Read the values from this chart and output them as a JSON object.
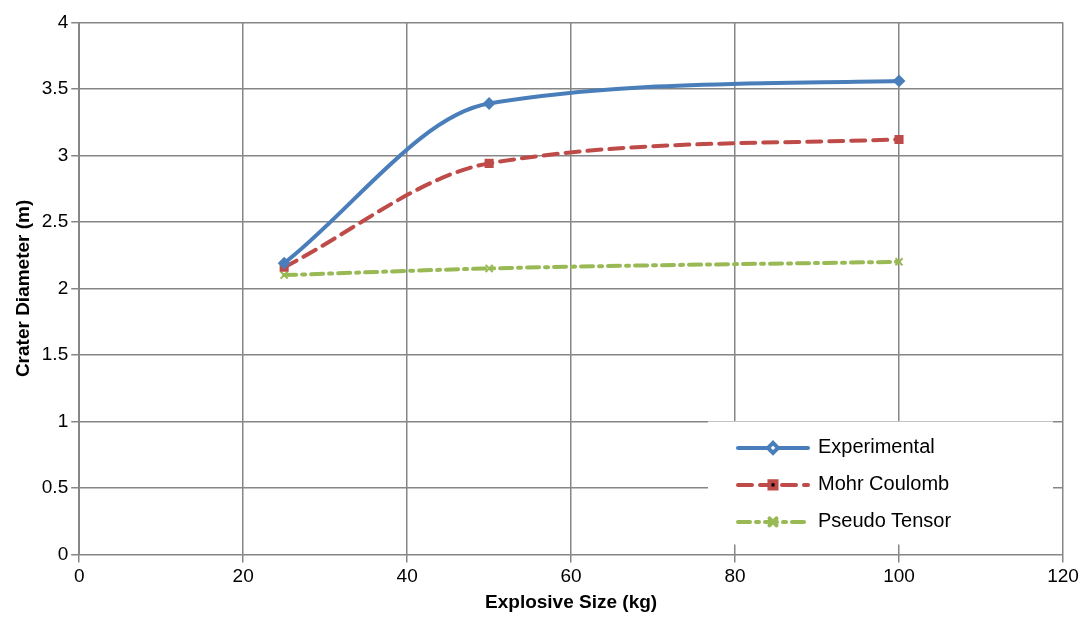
{
  "chart_data": {
    "type": "line",
    "xlabel": "Explosive Size (kg)",
    "ylabel": "Crater Diameter (m)",
    "x": [
      25,
      50,
      100
    ],
    "series": [
      {
        "name": "Experimental",
        "color": "#4a7ebb",
        "values": [
          2.19,
          3.39,
          3.56
        ],
        "marker": "diamond",
        "line_style": "solid"
      },
      {
        "name": "Mohr Coulomb",
        "color": "#be4b48",
        "values": [
          2.16,
          2.94,
          3.12
        ],
        "marker": "square",
        "line_style": "dashed"
      },
      {
        "name": "Pseudo Tensor",
        "color": "#98b954",
        "values": [
          2.1,
          2.15,
          2.2
        ],
        "marker": "cross",
        "line_style": "dotted"
      }
    ],
    "xlim": [
      0,
      120
    ],
    "xticks": [
      0,
      20,
      40,
      60,
      80,
      100,
      120
    ],
    "ylim": [
      0,
      4
    ],
    "yticks": [
      0,
      0.5,
      1,
      1.5,
      2,
      2.5,
      3,
      3.5,
      4
    ],
    "grid": true,
    "legend": "bottom right"
  }
}
